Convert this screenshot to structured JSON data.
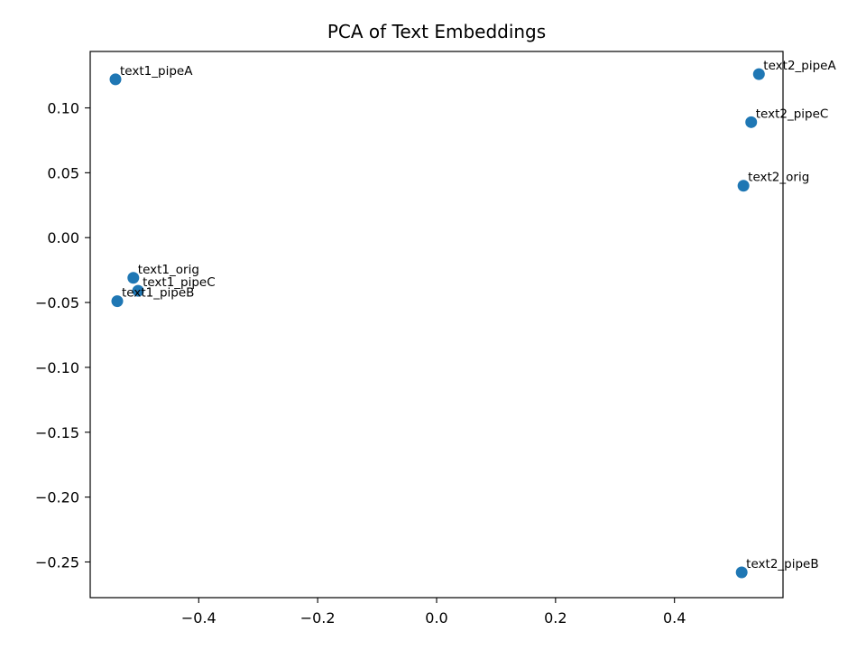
{
  "chart_data": {
    "type": "scatter",
    "title": "PCA of Text Embeddings",
    "xlabel": "",
    "ylabel": "",
    "xlim": [
      -0.5825,
      0.5825
    ],
    "ylim": [
      -0.2775,
      0.1435
    ],
    "x_ticks": [
      -0.4,
      -0.2,
      0.0,
      0.2,
      0.4
    ],
    "x_tick_labels": [
      "−0.4",
      "−0.2",
      "0.0",
      "0.2",
      "0.4"
    ],
    "y_ticks": [
      0.1,
      0.05,
      0.0,
      -0.05,
      -0.1,
      -0.15,
      -0.2,
      -0.25
    ],
    "y_tick_labels": [
      "0.10",
      "0.05",
      "0.00",
      "−0.05",
      "−0.10",
      "−0.15",
      "−0.20",
      "−0.25"
    ],
    "grid": false,
    "point_color": "#1f77b4",
    "points": [
      {
        "label": "text1_pipeA",
        "x": -0.54,
        "y": 0.122
      },
      {
        "label": "text1_orig",
        "x": -0.51,
        "y": -0.031
      },
      {
        "label": "text1_pipeC",
        "x": -0.502,
        "y": -0.041
      },
      {
        "label": "text1_pipeB",
        "x": -0.537,
        "y": -0.049
      },
      {
        "label": "text2_pipeA",
        "x": 0.542,
        "y": 0.126
      },
      {
        "label": "text2_pipeC",
        "x": 0.529,
        "y": 0.089
      },
      {
        "label": "text2_orig",
        "x": 0.516,
        "y": 0.04
      },
      {
        "label": "text2_pipeB",
        "x": 0.513,
        "y": -0.258
      }
    ]
  }
}
